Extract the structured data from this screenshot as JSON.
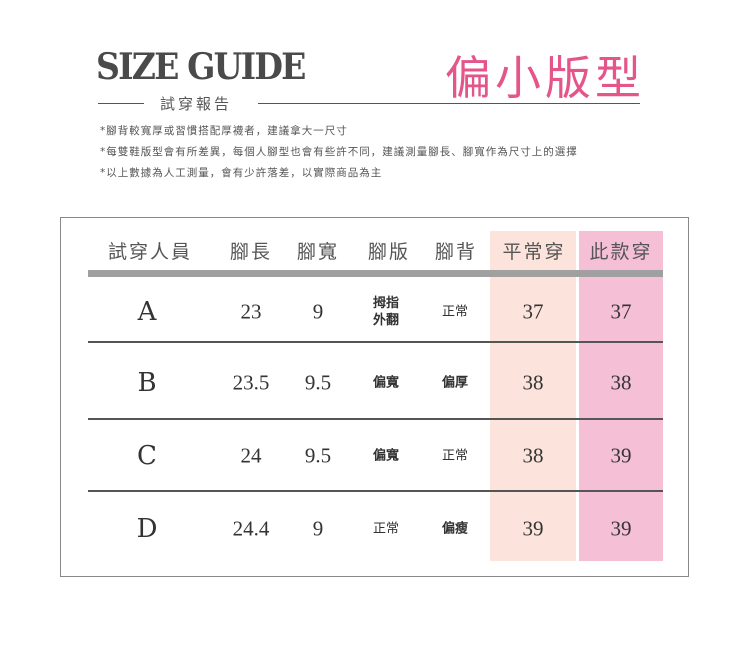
{
  "header": {
    "title": "SIZE GUIDE",
    "subtitle": "試穿報告",
    "badge": "偏小版型"
  },
  "notes": [
    "*腳背較寬厚或習慣搭配厚襪者，建議拿大一尺寸",
    "*每雙鞋版型會有所差異，每個人腳型也會有些許不同，建議測量腳長、腳寬作為尺寸上的選擇",
    "*以上數據為人工測量，會有少許落差，以實際商品為主"
  ],
  "table": {
    "columns": [
      "試穿人員",
      "腳長",
      "腳寬",
      "腳版",
      "腳背",
      "平常穿",
      "此款穿"
    ],
    "rows": [
      {
        "tester": "A",
        "length": "23",
        "width": "9",
        "foot_shape": "拇指\n外翻",
        "instep": "正常",
        "usual": "37",
        "this_style": "37"
      },
      {
        "tester": "B",
        "length": "23.5",
        "width": "9.5",
        "foot_shape": "偏寬",
        "instep": "偏厚",
        "usual": "38",
        "this_style": "38"
      },
      {
        "tester": "C",
        "length": "24",
        "width": "9.5",
        "foot_shape": "偏寬",
        "instep": "正常",
        "usual": "38",
        "this_style": "39"
      },
      {
        "tester": "D",
        "length": "24.4",
        "width": "9",
        "foot_shape": "正常",
        "instep": "偏瘦",
        "usual": "39",
        "this_style": "39"
      }
    ]
  },
  "colors": {
    "badge": "#e4558a",
    "usual_bg": "#fce4dc",
    "this_style_bg": "#f5c0d6"
  }
}
